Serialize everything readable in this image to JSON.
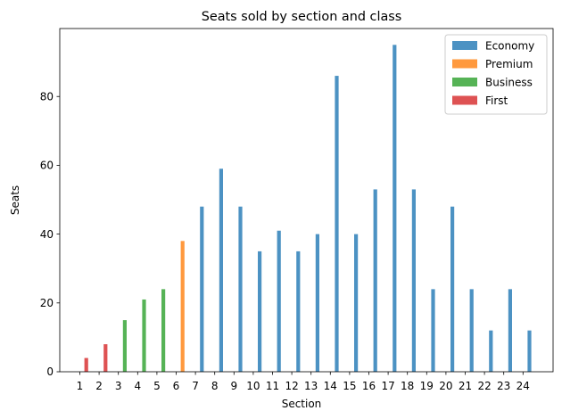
{
  "chart_data": {
    "type": "bar",
    "title": "Seats sold by section and class",
    "xlabel": "Section",
    "ylabel": "Seats",
    "categories": [
      "1",
      "2",
      "3",
      "4",
      "5",
      "6",
      "7",
      "8",
      "9",
      "10",
      "11",
      "12",
      "13",
      "14",
      "15",
      "16",
      "17",
      "18",
      "19",
      "20",
      "21",
      "22",
      "23",
      "24"
    ],
    "series": [
      {
        "name": "Economy",
        "color": "#1f77b4",
        "values": [
          null,
          null,
          null,
          null,
          null,
          null,
          48,
          59,
          48,
          35,
          41,
          35,
          40,
          86,
          40,
          53,
          95,
          53,
          24,
          48,
          24,
          12,
          24,
          12
        ]
      },
      {
        "name": "Premium",
        "color": "#ff7f0e",
        "values": [
          null,
          null,
          null,
          null,
          null,
          38,
          null,
          null,
          null,
          null,
          null,
          null,
          null,
          null,
          null,
          null,
          null,
          null,
          null,
          null,
          null,
          null,
          null,
          null
        ]
      },
      {
        "name": "Business",
        "color": "#2ca02c",
        "values": [
          null,
          null,
          15,
          21,
          24,
          null,
          null,
          null,
          null,
          null,
          null,
          null,
          null,
          null,
          null,
          null,
          null,
          null,
          null,
          null,
          null,
          null,
          null,
          null
        ]
      },
      {
        "name": "First",
        "color": "#d62728",
        "values": [
          4,
          8,
          null,
          null,
          null,
          null,
          null,
          null,
          null,
          null,
          null,
          null,
          null,
          null,
          null,
          null,
          null,
          null,
          null,
          null,
          null,
          null,
          null,
          null
        ]
      }
    ],
    "yticks": [
      0,
      20,
      40,
      60,
      80
    ],
    "ylim": [
      0,
      99.75
    ],
    "grid": false,
    "legend_position": "top-right"
  }
}
